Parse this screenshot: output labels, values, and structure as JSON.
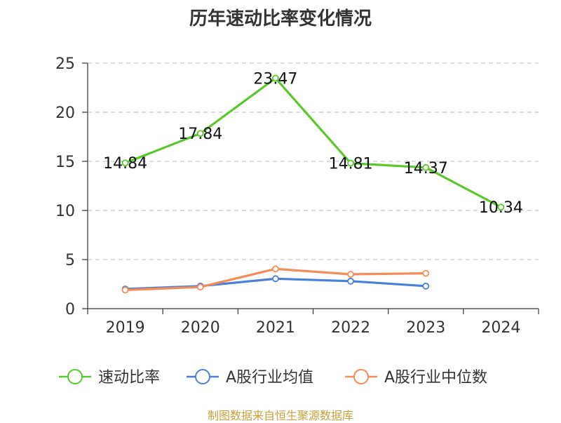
{
  "chart_data": {
    "type": "line",
    "title": "历年速动比率变化情况",
    "categories": [
      "2019",
      "2020",
      "2021",
      "2022",
      "2023",
      "2024"
    ],
    "ylim": [
      0,
      25
    ],
    "yticks": [
      0,
      5,
      10,
      15,
      20,
      25
    ],
    "grid": true,
    "legend_position": "bottom",
    "series": [
      {
        "name": "速动比率",
        "color": "#5ac72b",
        "values": [
          14.84,
          17.84,
          23.47,
          14.81,
          14.37,
          10.34
        ],
        "labels": [
          "14.84",
          "17.84",
          "23.47",
          "14.81",
          "14.37",
          "10.34"
        ]
      },
      {
        "name": "A股行业均值",
        "color": "#4a7fd8",
        "values": [
          2.0,
          2.3,
          3.05,
          2.8,
          2.3,
          null
        ]
      },
      {
        "name": "A股行业中位数",
        "color": "#f38b5a",
        "values": [
          1.9,
          2.2,
          4.05,
          3.5,
          3.6,
          null
        ]
      }
    ]
  },
  "footer": {
    "source": "制图数据来自恒生聚源数据库"
  }
}
